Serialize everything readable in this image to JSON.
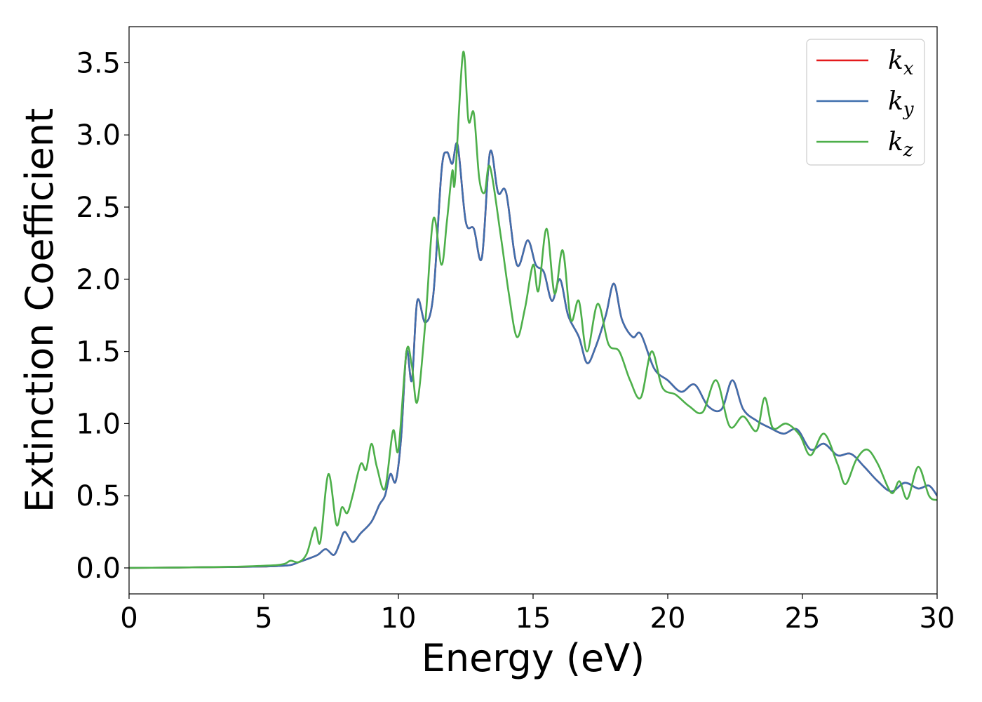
{
  "chart_data": {
    "type": "line",
    "title": "",
    "xlabel": "Energy (eV)",
    "ylabel": "Extinction Coefficient",
    "xlim": [
      0,
      30
    ],
    "ylim": [
      -0.18,
      3.75
    ],
    "xticks": [
      0,
      5,
      10,
      15,
      20,
      25,
      30
    ],
    "xtick_labels": [
      "0",
      "5",
      "10",
      "15",
      "20",
      "25",
      "30"
    ],
    "yticks": [
      0.0,
      0.5,
      1.0,
      1.5,
      2.0,
      2.5,
      3.0,
      3.5
    ],
    "ytick_labels": [
      "0.0",
      "0.5",
      "1.0",
      "1.5",
      "2.0",
      "2.5",
      "3.0",
      "3.5"
    ],
    "grid": false,
    "legend_position": "top-right",
    "series": [
      {
        "name": "k_x",
        "legend_base": "k",
        "legend_sub": "x",
        "color": "#e41a1c",
        "x": [
          0,
          2,
          4,
          5,
          5.5,
          6,
          6.3,
          6.6,
          7,
          7.3,
          7.6,
          7.8,
          8.0,
          8.3,
          8.6,
          9.0,
          9.3,
          9.5,
          9.7,
          9.9,
          10.1,
          10.3,
          10.5,
          10.7,
          11.0,
          11.3,
          11.6,
          11.8,
          12.0,
          12.2,
          12.5,
          12.8,
          13.1,
          13.4,
          13.7,
          14.0,
          14.4,
          14.8,
          15.1,
          15.4,
          15.7,
          16.0,
          16.3,
          16.7,
          17.0,
          17.3,
          17.7,
          18.0,
          18.3,
          18.7,
          19.0,
          19.5,
          20.0,
          20.5,
          21.0,
          21.5,
          22.0,
          22.4,
          22.8,
          23.3,
          23.8,
          24.3,
          24.8,
          25.3,
          25.8,
          26.3,
          26.8,
          27.3,
          27.8,
          28.3,
          28.8,
          29.3,
          29.7,
          30.0
        ],
        "y": [
          0.0,
          0.003,
          0.007,
          0.01,
          0.013,
          0.02,
          0.04,
          0.06,
          0.09,
          0.13,
          0.09,
          0.16,
          0.25,
          0.18,
          0.24,
          0.32,
          0.44,
          0.5,
          0.65,
          0.6,
          0.9,
          1.5,
          1.3,
          1.85,
          1.7,
          1.9,
          2.75,
          2.88,
          2.8,
          2.93,
          2.4,
          2.35,
          2.15,
          2.88,
          2.6,
          2.6,
          2.1,
          2.27,
          2.1,
          2.05,
          1.85,
          2.0,
          1.75,
          1.6,
          1.42,
          1.52,
          1.75,
          1.97,
          1.72,
          1.6,
          1.62,
          1.38,
          1.3,
          1.22,
          1.27,
          1.12,
          1.1,
          1.3,
          1.1,
          1.02,
          0.97,
          0.93,
          0.96,
          0.82,
          0.86,
          0.78,
          0.79,
          0.7,
          0.6,
          0.53,
          0.59,
          0.55,
          0.57,
          0.5
        ]
      },
      {
        "name": "k_y",
        "legend_base": "k",
        "legend_sub": "y",
        "color": "#3f6fad",
        "x": [
          0,
          2,
          4,
          5,
          5.5,
          6,
          6.3,
          6.6,
          7,
          7.3,
          7.6,
          7.8,
          8.0,
          8.3,
          8.6,
          9.0,
          9.3,
          9.5,
          9.7,
          9.9,
          10.1,
          10.3,
          10.5,
          10.7,
          11.0,
          11.3,
          11.6,
          11.8,
          12.0,
          12.2,
          12.5,
          12.8,
          13.1,
          13.4,
          13.7,
          14.0,
          14.4,
          14.8,
          15.1,
          15.4,
          15.7,
          16.0,
          16.3,
          16.7,
          17.0,
          17.3,
          17.7,
          18.0,
          18.3,
          18.7,
          19.0,
          19.5,
          20.0,
          20.5,
          21.0,
          21.5,
          22.0,
          22.4,
          22.8,
          23.3,
          23.8,
          24.3,
          24.8,
          25.3,
          25.8,
          26.3,
          26.8,
          27.3,
          27.8,
          28.3,
          28.8,
          29.3,
          29.7,
          30.0
        ],
        "y": [
          0.0,
          0.003,
          0.007,
          0.01,
          0.013,
          0.02,
          0.04,
          0.06,
          0.09,
          0.13,
          0.09,
          0.16,
          0.25,
          0.18,
          0.24,
          0.32,
          0.44,
          0.5,
          0.65,
          0.6,
          0.9,
          1.5,
          1.3,
          1.85,
          1.7,
          1.9,
          2.75,
          2.88,
          2.8,
          2.93,
          2.4,
          2.35,
          2.15,
          2.88,
          2.6,
          2.6,
          2.1,
          2.27,
          2.1,
          2.05,
          1.85,
          2.0,
          1.75,
          1.6,
          1.42,
          1.52,
          1.75,
          1.97,
          1.72,
          1.6,
          1.62,
          1.38,
          1.3,
          1.22,
          1.27,
          1.12,
          1.1,
          1.3,
          1.1,
          1.02,
          0.97,
          0.93,
          0.96,
          0.82,
          0.86,
          0.78,
          0.79,
          0.7,
          0.6,
          0.53,
          0.59,
          0.55,
          0.57,
          0.5
        ]
      },
      {
        "name": "k_z",
        "legend_base": "k",
        "legend_sub": "z",
        "color": "#4daf4a",
        "x": [
          0,
          2,
          4,
          5,
          5.5,
          5.8,
          6.0,
          6.3,
          6.6,
          6.9,
          7.1,
          7.4,
          7.7,
          7.9,
          8.1,
          8.3,
          8.6,
          8.8,
          9.0,
          9.2,
          9.5,
          9.8,
          10.0,
          10.3,
          10.5,
          10.7,
          11.0,
          11.3,
          11.6,
          11.8,
          12.0,
          12.1,
          12.4,
          12.6,
          12.8,
          13.0,
          13.2,
          13.4,
          13.8,
          14.1,
          14.4,
          14.7,
          15.0,
          15.2,
          15.5,
          15.8,
          16.1,
          16.4,
          16.7,
          17.0,
          17.4,
          17.8,
          18.2,
          18.6,
          19.0,
          19.4,
          19.8,
          20.3,
          20.8,
          21.3,
          21.8,
          22.3,
          22.8,
          23.3,
          23.6,
          23.9,
          24.4,
          24.9,
          25.3,
          25.8,
          26.3,
          26.6,
          27.0,
          27.4,
          27.8,
          28.3,
          28.6,
          28.9,
          29.3,
          29.7,
          30.0
        ],
        "y": [
          0.0,
          0.003,
          0.008,
          0.015,
          0.02,
          0.03,
          0.05,
          0.04,
          0.1,
          0.28,
          0.18,
          0.65,
          0.3,
          0.42,
          0.38,
          0.5,
          0.72,
          0.68,
          0.86,
          0.7,
          0.55,
          0.95,
          0.82,
          1.5,
          1.4,
          1.15,
          1.7,
          2.42,
          2.1,
          2.4,
          2.75,
          2.68,
          3.57,
          3.1,
          3.15,
          2.7,
          2.6,
          2.78,
          2.3,
          1.9,
          1.6,
          1.8,
          2.1,
          1.92,
          2.35,
          1.9,
          2.2,
          1.72,
          1.85,
          1.5,
          1.83,
          1.55,
          1.5,
          1.3,
          1.18,
          1.5,
          1.25,
          1.2,
          1.12,
          1.08,
          1.3,
          0.98,
          1.05,
          0.95,
          1.18,
          0.97,
          1.0,
          0.92,
          0.78,
          0.93,
          0.72,
          0.58,
          0.75,
          0.82,
          0.72,
          0.52,
          0.6,
          0.48,
          0.7,
          0.5,
          0.47
        ]
      }
    ]
  }
}
